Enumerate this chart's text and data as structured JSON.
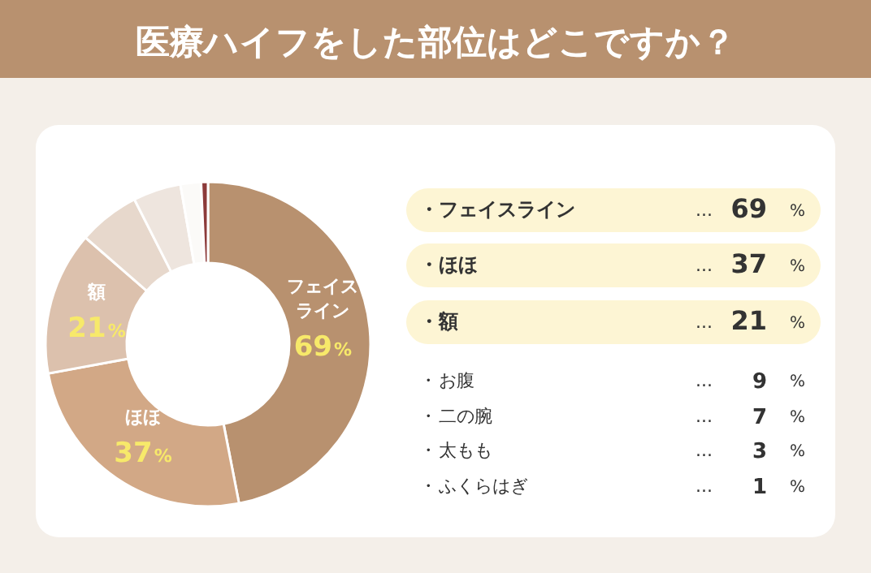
{
  "chart_data": [
    {
      "type": "donut",
      "title": "医療ハイフをした部位はどこですか？",
      "categories": [
        "フェイスライン",
        "ほほ",
        "額",
        "お腹",
        "二の腕",
        "太もも",
        "ふくらはぎ"
      ],
      "values": [
        69,
        37,
        21,
        9,
        7,
        3,
        1
      ],
      "value_labels": [
        "69%",
        "37%",
        "21%",
        null,
        null,
        null,
        null
      ],
      "colors": [
        "#b8916f",
        "#d2a886",
        "#dcc1ad",
        "#e7d8cc",
        "#eee5de",
        "#fbfaf8",
        "#8c3b3b"
      ]
    },
    {
      "type": "other",
      "annotations": [
        "・",
        "...",
        "69",
        "%",
        "・",
        "...",
        "37",
        "%",
        "・",
        "...",
        "21",
        "%",
        "・",
        "...",
        "9",
        "%",
        "・",
        "...",
        "7",
        "%",
        "・",
        "...",
        "3",
        "%",
        "・",
        "...",
        "1",
        "%"
      ]
    }
  ]
}
